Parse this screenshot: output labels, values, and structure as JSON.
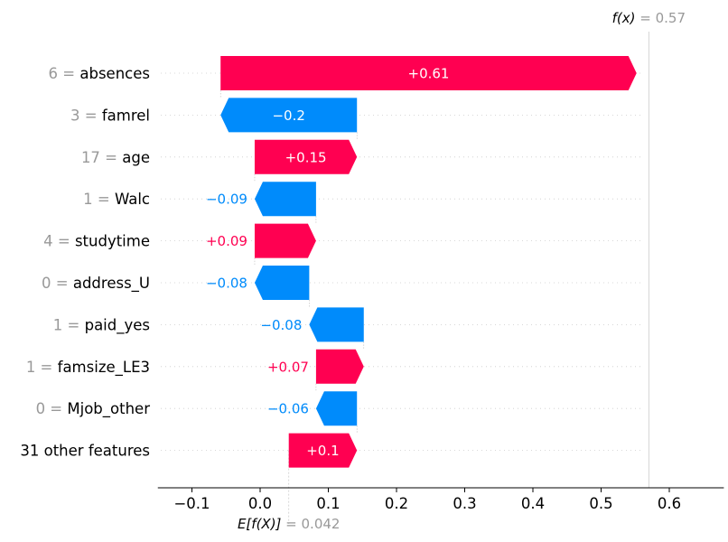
{
  "chart_data": {
    "type": "waterfall",
    "title": "",
    "xlabel": "",
    "ylabel": "",
    "xlim": [
      -0.15,
      0.68
    ],
    "x_ticks": [
      -0.1,
      0.0,
      0.1,
      0.2,
      0.3,
      0.4,
      0.5,
      0.6
    ],
    "x_tick_labels": [
      "−0.1",
      "0.0",
      "0.1",
      "0.2",
      "0.3",
      "0.4",
      "0.5",
      "0.6"
    ],
    "base_value": 0.042,
    "base_label": "E[f(X)]",
    "base_value_text": "= 0.042",
    "output_value": 0.57,
    "output_label": "f(x)",
    "output_value_text": "= 0.57",
    "colors": {
      "positive": "#ff0051",
      "negative": "#008bfb",
      "text_muted": "#999999"
    },
    "features": [
      {
        "value_text": "6 =",
        "name": "absences",
        "contribution": 0.61,
        "label": "+0.61"
      },
      {
        "value_text": "3 =",
        "name": "famrel",
        "contribution": -0.2,
        "label": "−0.2"
      },
      {
        "value_text": "17 =",
        "name": "age",
        "contribution": 0.15,
        "label": "+0.15"
      },
      {
        "value_text": "1 =",
        "name": "Walc",
        "contribution": -0.09,
        "label": "−0.09"
      },
      {
        "value_text": "4 =",
        "name": "studytime",
        "contribution": 0.09,
        "label": "+0.09"
      },
      {
        "value_text": "0 =",
        "name": "address_U",
        "contribution": -0.08,
        "label": "−0.08"
      },
      {
        "value_text": "1 =",
        "name": "paid_yes",
        "contribution": -0.08,
        "label": "−0.08"
      },
      {
        "value_text": "1 =",
        "name": "famsize_LE3",
        "contribution": 0.07,
        "label": "+0.07"
      },
      {
        "value_text": "0 =",
        "name": "Mjob_other",
        "contribution": -0.06,
        "label": "−0.06"
      },
      {
        "value_text": "",
        "name": "31 other features",
        "contribution": 0.1,
        "label": "+0.1"
      }
    ]
  }
}
